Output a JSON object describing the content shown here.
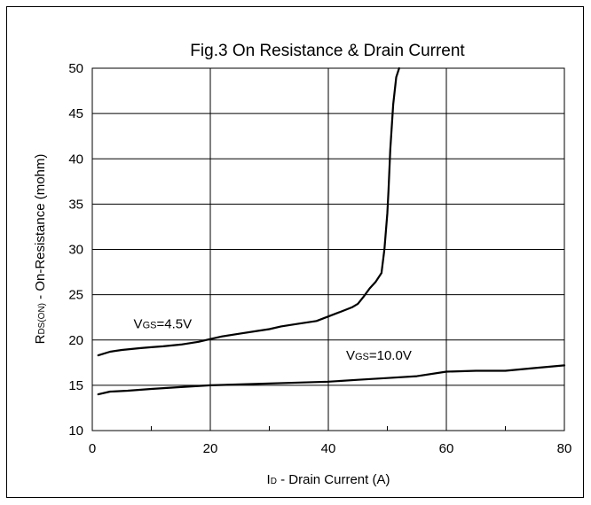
{
  "chart_data": {
    "type": "line",
    "title": "Fig.3 On Resistance & Drain Current",
    "xlabel": "ID - Drain Current (A)",
    "ylabel": "RDS(ON) - On-Resistance (mohm)",
    "xlim": [
      0,
      80
    ],
    "ylim": [
      10,
      50
    ],
    "xticks": [
      0,
      20,
      40,
      60,
      80
    ],
    "yticks": [
      10,
      15,
      20,
      25,
      30,
      35,
      40,
      45,
      50
    ],
    "grid": true,
    "series": [
      {
        "name": "VGS=4.5V",
        "color": "#000000",
        "x": [
          1,
          3,
          5,
          8,
          10,
          12,
          15,
          18,
          20,
          22,
          25,
          28,
          30,
          32,
          35,
          38,
          40,
          42,
          44,
          45,
          46,
          47,
          48,
          49,
          49.5,
          50,
          50.2,
          50.5,
          51,
          51.5,
          52
        ],
        "y": [
          18.3,
          18.7,
          18.9,
          19.1,
          19.2,
          19.3,
          19.5,
          19.8,
          20.1,
          20.4,
          20.7,
          21.0,
          21.2,
          21.5,
          21.8,
          22.1,
          22.6,
          23.1,
          23.6,
          24.0,
          24.8,
          25.7,
          26.4,
          27.4,
          30.0,
          34.0,
          36.5,
          41.0,
          46.0,
          49.0,
          50.0
        ]
      },
      {
        "name": "VGS=10.0V",
        "color": "#000000",
        "x": [
          1,
          3,
          6,
          10,
          15,
          20,
          25,
          30,
          35,
          40,
          45,
          50,
          55,
          60,
          65,
          70,
          75,
          80
        ],
        "y": [
          14.0,
          14.3,
          14.4,
          14.6,
          14.8,
          15.0,
          15.1,
          15.2,
          15.3,
          15.4,
          15.6,
          15.8,
          16.0,
          16.5,
          16.6,
          16.6,
          16.9,
          17.2
        ]
      }
    ],
    "annotations": [
      {
        "label_main": "V",
        "label_sub": "GS",
        "label_rest": "=4.5V",
        "x": 7,
        "y": 21.3
      },
      {
        "label_main": "V",
        "label_sub": "GS",
        "label_rest": "=10.0V",
        "x": 43,
        "y": 17.8
      }
    ],
    "axis_label_parts": {
      "x": {
        "main": "I",
        "sub": "D",
        "rest": " - Drain Current (A)"
      },
      "y": {
        "main": "R",
        "sub": "DS(ON)",
        "rest": " - On-Resistance (mohm)"
      }
    }
  }
}
